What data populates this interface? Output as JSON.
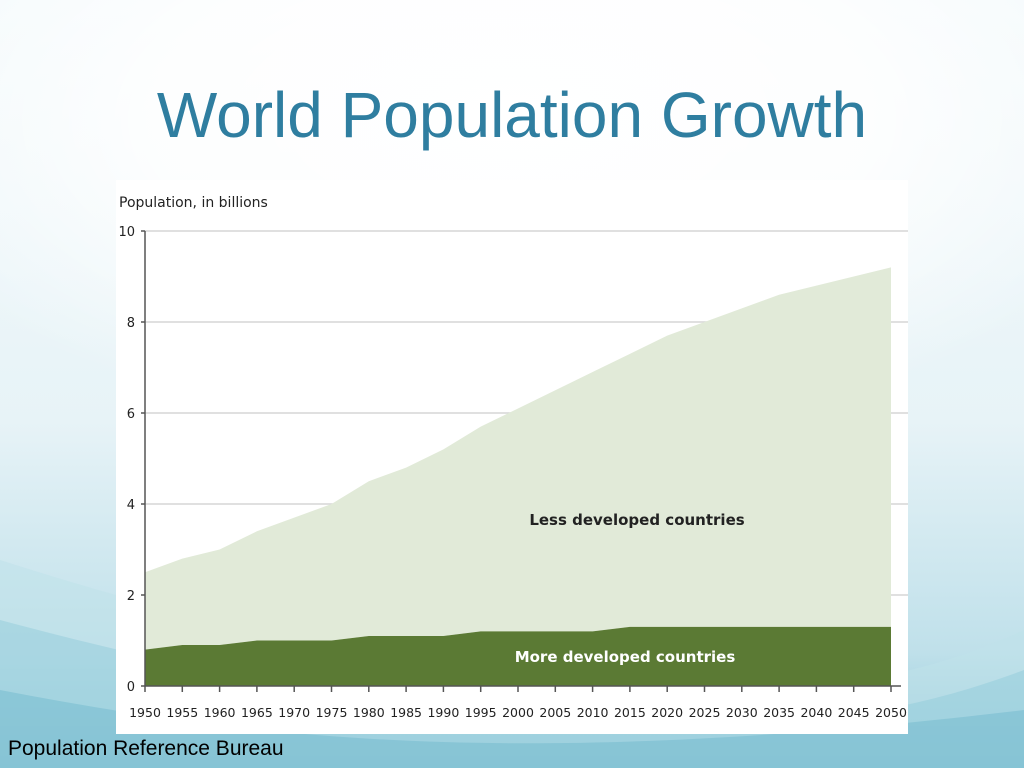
{
  "slide": {
    "title": "World Population Growth",
    "credit": "Population Reference Bureau"
  },
  "colors": {
    "title": "#2f7ea0",
    "less_developed": "#e1ead8",
    "more_developed": "#5b7a34",
    "grid": "#d6d6d6",
    "axis": "#555555"
  },
  "chart_data": {
    "type": "area",
    "stacked": true,
    "ylabel": "Population, in billions",
    "ylim": [
      0,
      10
    ],
    "yticks": [
      0,
      2,
      4,
      6,
      8,
      10
    ],
    "grid": true,
    "x": [
      1950,
      1955,
      1960,
      1965,
      1970,
      1975,
      1980,
      1985,
      1990,
      1995,
      2000,
      2005,
      2010,
      2015,
      2020,
      2025,
      2030,
      2035,
      2040,
      2045,
      2050
    ],
    "series": [
      {
        "name": "More developed countries",
        "values": [
          0.8,
          0.9,
          0.9,
          1.0,
          1.0,
          1.0,
          1.1,
          1.1,
          1.1,
          1.2,
          1.2,
          1.2,
          1.2,
          1.3,
          1.3,
          1.3,
          1.3,
          1.3,
          1.3,
          1.3,
          1.3
        ]
      },
      {
        "name": "Less developed countries",
        "values": [
          1.7,
          1.9,
          2.1,
          2.4,
          2.7,
          3.0,
          3.4,
          3.7,
          4.1,
          4.5,
          4.9,
          5.3,
          5.7,
          6.0,
          6.4,
          6.7,
          7.0,
          7.3,
          7.5,
          7.7,
          7.9
        ]
      }
    ],
    "totals": [
      2.5,
      2.8,
      3.0,
      3.4,
      3.7,
      4.0,
      4.5,
      4.8,
      5.2,
      5.7,
      6.1,
      6.5,
      6.9,
      7.3,
      7.7,
      8.0,
      8.3,
      8.6,
      8.8,
      9.0,
      9.2
    ]
  }
}
